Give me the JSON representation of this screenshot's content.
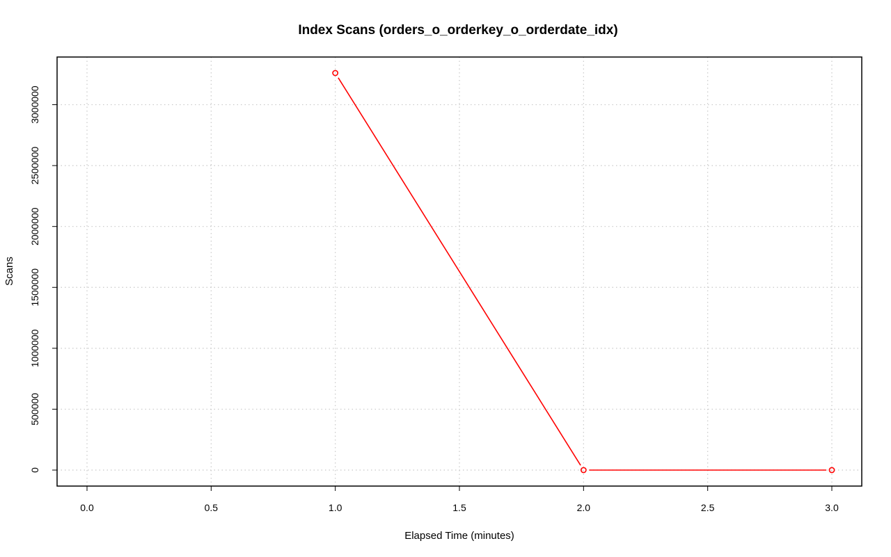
{
  "chart_data": {
    "type": "line",
    "title": "Index Scans (orders_o_orderkey_o_orderdate_idx)",
    "xlabel": "Elapsed Time (minutes)",
    "ylabel": "Scans",
    "xlim": [
      0,
      3
    ],
    "ylim": [
      0,
      3260000
    ],
    "x_ticks": [
      "0.0",
      "0.5",
      "1.0",
      "1.5",
      "2.0",
      "2.5",
      "3.0"
    ],
    "y_ticks": [
      "0",
      "500000",
      "1000000",
      "1500000",
      "2000000",
      "2500000",
      "3000000"
    ],
    "grid": true,
    "series": [
      {
        "color": "#ff0000",
        "x": [
          1,
          2,
          3
        ],
        "y": [
          3260000,
          0,
          0
        ]
      }
    ]
  }
}
